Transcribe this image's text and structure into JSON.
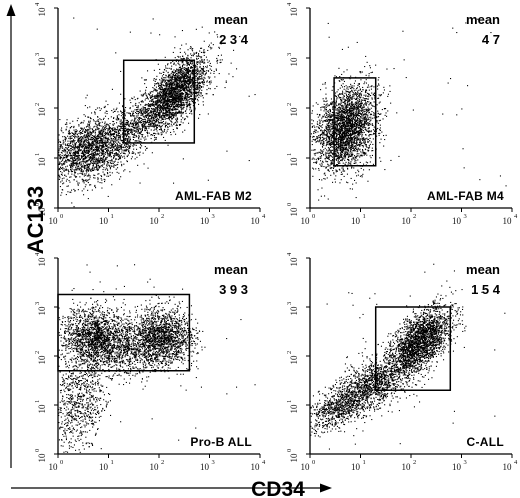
{
  "chart_data": {
    "type": "scatter",
    "xlabel": "CD34",
    "ylabel": "AC133",
    "x_scale": "log",
    "y_scale": "log",
    "xlim": [
      1,
      10000
    ],
    "ylim": [
      1,
      10000
    ],
    "tick_labels": [
      {
        "base": "10",
        "exp": "0"
      },
      {
        "base": "10",
        "exp": "1"
      },
      {
        "base": "10",
        "exp": "2"
      },
      {
        "base": "10",
        "exp": "3"
      },
      {
        "base": "10",
        "exp": "4"
      }
    ],
    "panels": [
      {
        "label": "AML-FAB M2",
        "mean_label": "mean",
        "mean_value": "2 3 4",
        "gate": {
          "x": [
            20,
            500
          ],
          "y": [
            20,
            900
          ]
        },
        "clusters": [
          {
            "cx": 200,
            "cy": 200,
            "sx": 0.34,
            "sy": 0.38,
            "rho": 0.65,
            "n": 2600
          },
          {
            "cx": 4,
            "cy": 15,
            "sx": 0.42,
            "sy": 0.32,
            "rho": 0.35,
            "n": 2000
          },
          {
            "cx": 25,
            "cy": 40,
            "sx": 0.3,
            "sy": 0.28,
            "rho": 0.5,
            "n": 500
          }
        ]
      },
      {
        "label": "AML-FAB M4",
        "mean_label": "mean",
        "mean_value": "4 7",
        "gate": {
          "x": [
            3,
            20
          ],
          "y": [
            7,
            400
          ]
        },
        "clusters": [
          {
            "cx": 5,
            "cy": 40,
            "sx": 0.3,
            "sy": 0.42,
            "rho": 0.3,
            "n": 2800
          }
        ]
      },
      {
        "label": "Pro-B  ALL",
        "mean_label": "mean",
        "mean_value": "3 9 3",
        "gate": {
          "x": [
            1,
            400
          ],
          "y": [
            50,
            1800
          ]
        },
        "clusters": [
          {
            "cx": 5,
            "cy": 250,
            "sx": 0.32,
            "sy": 0.3,
            "rho": 0.0,
            "n": 1500
          },
          {
            "cx": 120,
            "cy": 250,
            "sx": 0.3,
            "sy": 0.3,
            "rho": 0.0,
            "n": 1500
          },
          {
            "cx": 25,
            "cy": 150,
            "sx": 0.4,
            "sy": 0.3,
            "rho": 0.0,
            "n": 800
          },
          {
            "cx": 2.5,
            "cy": 12,
            "sx": 0.3,
            "sy": 0.55,
            "rho": 0.2,
            "n": 800
          }
        ]
      },
      {
        "label": "C-ALL",
        "mean_label": "mean",
        "mean_value": "1 5 4",
        "gate": {
          "x": [
            20,
            600
          ],
          "y": [
            20,
            1000
          ]
        },
        "clusters": [
          {
            "cx": 150,
            "cy": 200,
            "sx": 0.3,
            "sy": 0.34,
            "rho": 0.55,
            "n": 2300
          },
          {
            "cx": 15,
            "cy": 25,
            "sx": 0.42,
            "sy": 0.32,
            "rho": 0.6,
            "n": 1400
          },
          {
            "cx": 3,
            "cy": 8,
            "sx": 0.28,
            "sy": 0.22,
            "rho": 0.5,
            "n": 500
          }
        ]
      }
    ]
  }
}
